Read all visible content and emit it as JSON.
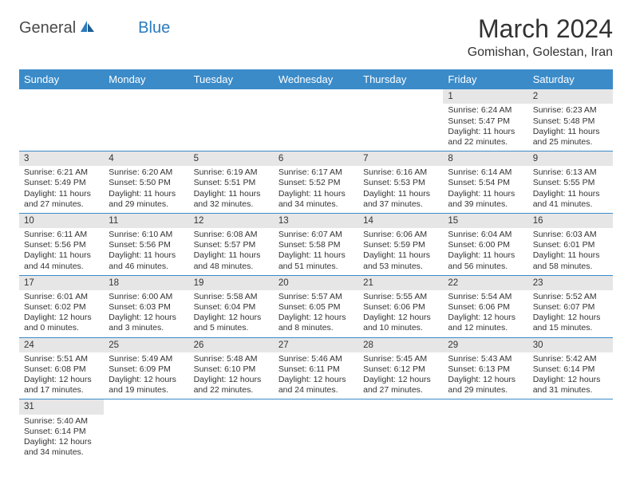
{
  "logo": {
    "text1": "General",
    "text2": "Blue"
  },
  "title": "March 2024",
  "location": "Gomishan, Golestan, Iran",
  "colors": {
    "header_bg": "#3b8bc9",
    "header_text": "#ffffff",
    "daynum_bg": "#e6e6e6",
    "cell_border": "#3b8bc9",
    "text": "#333333",
    "logo_gray": "#4a4a4a",
    "logo_blue": "#2b7bbf"
  },
  "day_headers": [
    "Sunday",
    "Monday",
    "Tuesday",
    "Wednesday",
    "Thursday",
    "Friday",
    "Saturday"
  ],
  "weeks": [
    [
      null,
      null,
      null,
      null,
      null,
      {
        "n": "1",
        "sr": "Sunrise: 6:24 AM",
        "ss": "Sunset: 5:47 PM",
        "dl": "Daylight: 11 hours and 22 minutes."
      },
      {
        "n": "2",
        "sr": "Sunrise: 6:23 AM",
        "ss": "Sunset: 5:48 PM",
        "dl": "Daylight: 11 hours and 25 minutes."
      }
    ],
    [
      {
        "n": "3",
        "sr": "Sunrise: 6:21 AM",
        "ss": "Sunset: 5:49 PM",
        "dl": "Daylight: 11 hours and 27 minutes."
      },
      {
        "n": "4",
        "sr": "Sunrise: 6:20 AM",
        "ss": "Sunset: 5:50 PM",
        "dl": "Daylight: 11 hours and 29 minutes."
      },
      {
        "n": "5",
        "sr": "Sunrise: 6:19 AM",
        "ss": "Sunset: 5:51 PM",
        "dl": "Daylight: 11 hours and 32 minutes."
      },
      {
        "n": "6",
        "sr": "Sunrise: 6:17 AM",
        "ss": "Sunset: 5:52 PM",
        "dl": "Daylight: 11 hours and 34 minutes."
      },
      {
        "n": "7",
        "sr": "Sunrise: 6:16 AM",
        "ss": "Sunset: 5:53 PM",
        "dl": "Daylight: 11 hours and 37 minutes."
      },
      {
        "n": "8",
        "sr": "Sunrise: 6:14 AM",
        "ss": "Sunset: 5:54 PM",
        "dl": "Daylight: 11 hours and 39 minutes."
      },
      {
        "n": "9",
        "sr": "Sunrise: 6:13 AM",
        "ss": "Sunset: 5:55 PM",
        "dl": "Daylight: 11 hours and 41 minutes."
      }
    ],
    [
      {
        "n": "10",
        "sr": "Sunrise: 6:11 AM",
        "ss": "Sunset: 5:56 PM",
        "dl": "Daylight: 11 hours and 44 minutes."
      },
      {
        "n": "11",
        "sr": "Sunrise: 6:10 AM",
        "ss": "Sunset: 5:56 PM",
        "dl": "Daylight: 11 hours and 46 minutes."
      },
      {
        "n": "12",
        "sr": "Sunrise: 6:08 AM",
        "ss": "Sunset: 5:57 PM",
        "dl": "Daylight: 11 hours and 48 minutes."
      },
      {
        "n": "13",
        "sr": "Sunrise: 6:07 AM",
        "ss": "Sunset: 5:58 PM",
        "dl": "Daylight: 11 hours and 51 minutes."
      },
      {
        "n": "14",
        "sr": "Sunrise: 6:06 AM",
        "ss": "Sunset: 5:59 PM",
        "dl": "Daylight: 11 hours and 53 minutes."
      },
      {
        "n": "15",
        "sr": "Sunrise: 6:04 AM",
        "ss": "Sunset: 6:00 PM",
        "dl": "Daylight: 11 hours and 56 minutes."
      },
      {
        "n": "16",
        "sr": "Sunrise: 6:03 AM",
        "ss": "Sunset: 6:01 PM",
        "dl": "Daylight: 11 hours and 58 minutes."
      }
    ],
    [
      {
        "n": "17",
        "sr": "Sunrise: 6:01 AM",
        "ss": "Sunset: 6:02 PM",
        "dl": "Daylight: 12 hours and 0 minutes."
      },
      {
        "n": "18",
        "sr": "Sunrise: 6:00 AM",
        "ss": "Sunset: 6:03 PM",
        "dl": "Daylight: 12 hours and 3 minutes."
      },
      {
        "n": "19",
        "sr": "Sunrise: 5:58 AM",
        "ss": "Sunset: 6:04 PM",
        "dl": "Daylight: 12 hours and 5 minutes."
      },
      {
        "n": "20",
        "sr": "Sunrise: 5:57 AM",
        "ss": "Sunset: 6:05 PM",
        "dl": "Daylight: 12 hours and 8 minutes."
      },
      {
        "n": "21",
        "sr": "Sunrise: 5:55 AM",
        "ss": "Sunset: 6:06 PM",
        "dl": "Daylight: 12 hours and 10 minutes."
      },
      {
        "n": "22",
        "sr": "Sunrise: 5:54 AM",
        "ss": "Sunset: 6:06 PM",
        "dl": "Daylight: 12 hours and 12 minutes."
      },
      {
        "n": "23",
        "sr": "Sunrise: 5:52 AM",
        "ss": "Sunset: 6:07 PM",
        "dl": "Daylight: 12 hours and 15 minutes."
      }
    ],
    [
      {
        "n": "24",
        "sr": "Sunrise: 5:51 AM",
        "ss": "Sunset: 6:08 PM",
        "dl": "Daylight: 12 hours and 17 minutes."
      },
      {
        "n": "25",
        "sr": "Sunrise: 5:49 AM",
        "ss": "Sunset: 6:09 PM",
        "dl": "Daylight: 12 hours and 19 minutes."
      },
      {
        "n": "26",
        "sr": "Sunrise: 5:48 AM",
        "ss": "Sunset: 6:10 PM",
        "dl": "Daylight: 12 hours and 22 minutes."
      },
      {
        "n": "27",
        "sr": "Sunrise: 5:46 AM",
        "ss": "Sunset: 6:11 PM",
        "dl": "Daylight: 12 hours and 24 minutes."
      },
      {
        "n": "28",
        "sr": "Sunrise: 5:45 AM",
        "ss": "Sunset: 6:12 PM",
        "dl": "Daylight: 12 hours and 27 minutes."
      },
      {
        "n": "29",
        "sr": "Sunrise: 5:43 AM",
        "ss": "Sunset: 6:13 PM",
        "dl": "Daylight: 12 hours and 29 minutes."
      },
      {
        "n": "30",
        "sr": "Sunrise: 5:42 AM",
        "ss": "Sunset: 6:14 PM",
        "dl": "Daylight: 12 hours and 31 minutes."
      }
    ],
    [
      {
        "n": "31",
        "sr": "Sunrise: 5:40 AM",
        "ss": "Sunset: 6:14 PM",
        "dl": "Daylight: 12 hours and 34 minutes."
      },
      null,
      null,
      null,
      null,
      null,
      null
    ]
  ]
}
